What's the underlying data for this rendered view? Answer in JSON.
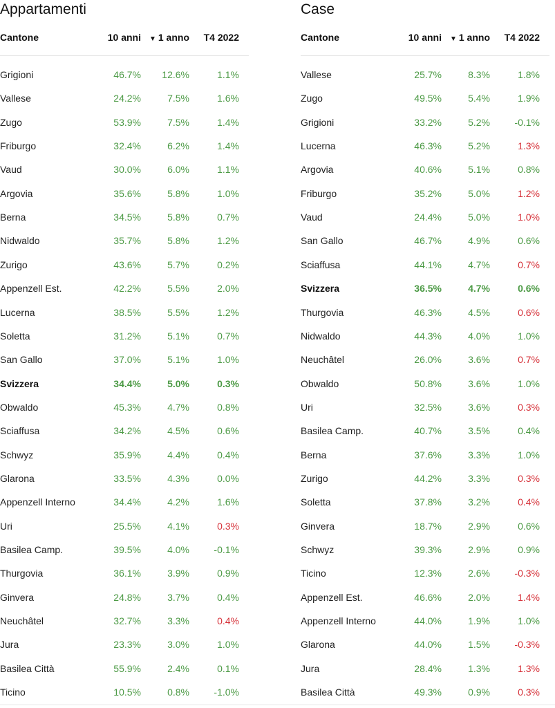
{
  "chart_data": [
    {
      "type": "table",
      "title": "Appartamenti",
      "columns": [
        "Cantone",
        "10 anni",
        "1 anno",
        "T4 2022"
      ],
      "sort_marker": "▼",
      "rows": [
        {
          "cantone": "Grigioni",
          "y10": "46.7%",
          "y1": "12.6%",
          "t4": "1.1%",
          "t4_neg": false
        },
        {
          "cantone": "Vallese",
          "y10": "24.2%",
          "y1": "7.5%",
          "t4": "1.6%",
          "t4_neg": false
        },
        {
          "cantone": "Zugo",
          "y10": "53.9%",
          "y1": "7.5%",
          "t4": "1.4%",
          "t4_neg": false
        },
        {
          "cantone": "Friburgo",
          "y10": "32.4%",
          "y1": "6.2%",
          "t4": "1.4%",
          "t4_neg": false
        },
        {
          "cantone": "Vaud",
          "y10": "30.0%",
          "y1": "6.0%",
          "t4": "1.1%",
          "t4_neg": false
        },
        {
          "cantone": "Argovia",
          "y10": "35.6%",
          "y1": "5.8%",
          "t4": "1.0%",
          "t4_neg": false
        },
        {
          "cantone": "Berna",
          "y10": "34.5%",
          "y1": "5.8%",
          "t4": "0.7%",
          "t4_neg": false
        },
        {
          "cantone": "Nidwaldo",
          "y10": "35.7%",
          "y1": "5.8%",
          "t4": "1.2%",
          "t4_neg": false
        },
        {
          "cantone": "Zurigo",
          "y10": "43.6%",
          "y1": "5.7%",
          "t4": "0.2%",
          "t4_neg": false
        },
        {
          "cantone": "Appenzell Est.",
          "y10": "42.2%",
          "y1": "5.5%",
          "t4": "2.0%",
          "t4_neg": false
        },
        {
          "cantone": "Lucerna",
          "y10": "38.5%",
          "y1": "5.5%",
          "t4": "1.2%",
          "t4_neg": false
        },
        {
          "cantone": "Soletta",
          "y10": "31.2%",
          "y1": "5.1%",
          "t4": "0.7%",
          "t4_neg": false
        },
        {
          "cantone": "San Gallo",
          "y10": "37.0%",
          "y1": "5.1%",
          "t4": "1.0%",
          "t4_neg": false
        },
        {
          "cantone": "Svizzera",
          "y10": "34.4%",
          "y1": "5.0%",
          "t4": "0.3%",
          "t4_neg": false,
          "bold": true
        },
        {
          "cantone": "Obwaldo",
          "y10": "45.3%",
          "y1": "4.7%",
          "t4": "0.8%",
          "t4_neg": false
        },
        {
          "cantone": "Sciaffusa",
          "y10": "34.2%",
          "y1": "4.5%",
          "t4": "0.6%",
          "t4_neg": false
        },
        {
          "cantone": "Schwyz",
          "y10": "35.9%",
          "y1": "4.4%",
          "t4": "0.4%",
          "t4_neg": false
        },
        {
          "cantone": "Glarona",
          "y10": "33.5%",
          "y1": "4.3%",
          "t4": "0.0%",
          "t4_neg": false
        },
        {
          "cantone": "Appenzell Interno",
          "y10": "34.4%",
          "y1": "4.2%",
          "t4": "1.6%",
          "t4_neg": false
        },
        {
          "cantone": "Uri",
          "y10": "25.5%",
          "y1": "4.1%",
          "t4": "0.3%",
          "t4_neg": true
        },
        {
          "cantone": "Basilea Camp.",
          "y10": "39.5%",
          "y1": "4.0%",
          "t4": "-0.1%",
          "t4_neg": false
        },
        {
          "cantone": "Thurgovia",
          "y10": "36.1%",
          "y1": "3.9%",
          "t4": "0.9%",
          "t4_neg": false
        },
        {
          "cantone": "Ginvera",
          "y10": "24.8%",
          "y1": "3.7%",
          "t4": "0.4%",
          "t4_neg": false
        },
        {
          "cantone": "Neuchâtel",
          "y10": "32.7%",
          "y1": "3.3%",
          "t4": "0.4%",
          "t4_neg": true
        },
        {
          "cantone": "Jura",
          "y10": "23.3%",
          "y1": "3.0%",
          "t4": "1.0%",
          "t4_neg": false
        },
        {
          "cantone": "Basilea Città",
          "y10": "55.9%",
          "y1": "2.4%",
          "t4": "0.1%",
          "t4_neg": false
        },
        {
          "cantone": "Ticino",
          "y10": "10.5%",
          "y1": "0.8%",
          "t4": "-1.0%",
          "t4_neg": false
        }
      ]
    },
    {
      "type": "table",
      "title": "Case",
      "columns": [
        "Cantone",
        "10 anni",
        "1 anno",
        "T4 2022"
      ],
      "sort_marker": "▼",
      "rows": [
        {
          "cantone": "Vallese",
          "y10": "25.7%",
          "y1": "8.3%",
          "t4": "1.8%",
          "t4_neg": false
        },
        {
          "cantone": "Zugo",
          "y10": "49.5%",
          "y1": "5.4%",
          "t4": "1.9%",
          "t4_neg": false
        },
        {
          "cantone": "Grigioni",
          "y10": "33.2%",
          "y1": "5.2%",
          "t4": "-0.1%",
          "t4_neg": false
        },
        {
          "cantone": "Lucerna",
          "y10": "46.3%",
          "y1": "5.2%",
          "t4": "1.3%",
          "t4_neg": true
        },
        {
          "cantone": "Argovia",
          "y10": "40.6%",
          "y1": "5.1%",
          "t4": "0.8%",
          "t4_neg": false
        },
        {
          "cantone": "Friburgo",
          "y10": "35.2%",
          "y1": "5.0%",
          "t4": "1.2%",
          "t4_neg": true
        },
        {
          "cantone": "Vaud",
          "y10": "24.4%",
          "y1": "5.0%",
          "t4": "1.0%",
          "t4_neg": true
        },
        {
          "cantone": "San Gallo",
          "y10": "46.7%",
          "y1": "4.9%",
          "t4": "0.6%",
          "t4_neg": false
        },
        {
          "cantone": "Sciaffusa",
          "y10": "44.1%",
          "y1": "4.7%",
          "t4": "0.7%",
          "t4_neg": true
        },
        {
          "cantone": "Svizzera",
          "y10": "36.5%",
          "y1": "4.7%",
          "t4": "0.6%",
          "t4_neg": false,
          "bold": true
        },
        {
          "cantone": "Thurgovia",
          "y10": "46.3%",
          "y1": "4.5%",
          "t4": "0.6%",
          "t4_neg": true
        },
        {
          "cantone": "Nidwaldo",
          "y10": "44.3%",
          "y1": "4.0%",
          "t4": "1.0%",
          "t4_neg": false
        },
        {
          "cantone": "Neuchâtel",
          "y10": "26.0%",
          "y1": "3.6%",
          "t4": "0.7%",
          "t4_neg": true
        },
        {
          "cantone": "Obwaldo",
          "y10": "50.8%",
          "y1": "3.6%",
          "t4": "1.0%",
          "t4_neg": false
        },
        {
          "cantone": "Uri",
          "y10": "32.5%",
          "y1": "3.6%",
          "t4": "0.3%",
          "t4_neg": true
        },
        {
          "cantone": "Basilea Camp.",
          "y10": "40.7%",
          "y1": "3.5%",
          "t4": "0.4%",
          "t4_neg": false
        },
        {
          "cantone": "Berna",
          "y10": "37.6%",
          "y1": "3.3%",
          "t4": "1.0%",
          "t4_neg": false
        },
        {
          "cantone": "Zurigo",
          "y10": "44.2%",
          "y1": "3.3%",
          "t4": "0.3%",
          "t4_neg": true
        },
        {
          "cantone": "Soletta",
          "y10": "37.8%",
          "y1": "3.2%",
          "t4": "0.4%",
          "t4_neg": true
        },
        {
          "cantone": "Ginvera",
          "y10": "18.7%",
          "y1": "2.9%",
          "t4": "0.6%",
          "t4_neg": false
        },
        {
          "cantone": "Schwyz",
          "y10": "39.3%",
          "y1": "2.9%",
          "t4": "0.9%",
          "t4_neg": false
        },
        {
          "cantone": "Ticino",
          "y10": "12.3%",
          "y1": "2.6%",
          "t4": "-0.3%",
          "t4_neg": true
        },
        {
          "cantone": "Appenzell Est.",
          "y10": "46.6%",
          "y1": "2.0%",
          "t4": "1.4%",
          "t4_neg": true
        },
        {
          "cantone": "Appenzell Interno",
          "y10": "44.0%",
          "y1": "1.9%",
          "t4": "1.0%",
          "t4_neg": false
        },
        {
          "cantone": "Glarona",
          "y10": "44.0%",
          "y1": "1.5%",
          "t4": "-0.3%",
          "t4_neg": true
        },
        {
          "cantone": "Jura",
          "y10": "28.4%",
          "y1": "1.3%",
          "t4": "1.3%",
          "t4_neg": true
        },
        {
          "cantone": "Basilea Città",
          "y10": "49.3%",
          "y1": "0.9%",
          "t4": "0.3%",
          "t4_neg": true
        }
      ]
    }
  ],
  "colors": {
    "positive": "#4c9a45",
    "negative": "#d6323a",
    "text": "#222222",
    "divider": "#e6e6e6"
  }
}
